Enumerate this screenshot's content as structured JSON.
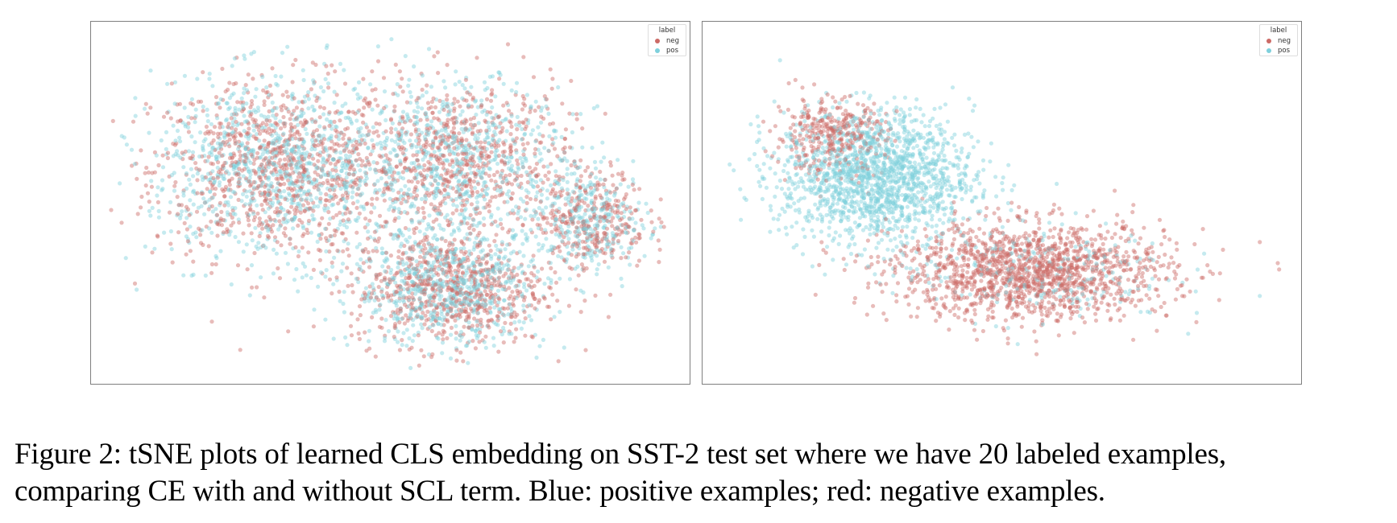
{
  "figure": {
    "caption_line_1": "Figure 2: tSNE plots of learned CLS embedding on SST-2 test set where we have 20 labeled examples,",
    "caption_line_2": "comparing CE with and without SCL term. Blue: positive examples; red: negative examples."
  },
  "colors": {
    "neg": "#cc6a66",
    "pos": "#7fd0dc"
  },
  "chart_data": [
    {
      "type": "scatter",
      "title": "",
      "xlabel": "",
      "ylabel": "",
      "legend": {
        "title": "label",
        "placement": "top-right",
        "entries": [
          "neg",
          "pos"
        ]
      },
      "xlim": [
        0,
        100
      ],
      "ylim": [
        0,
        100
      ],
      "tick_labels_shown": false,
      "grid": false,
      "series": [
        {
          "name": "neg",
          "note_density": "mixed",
          "clusters": [
            [
              30,
              60,
              18,
              22,
              900
            ],
            [
              62,
              62,
              16,
              20,
              700
            ],
            [
              60,
              25,
              14,
              14,
              700
            ],
            [
              85,
              45,
              8,
              12,
              300
            ]
          ]
        },
        {
          "name": "pos",
          "clusters": [
            [
              30,
              60,
              18,
              22,
              950
            ],
            [
              62,
              62,
              16,
              20,
              700
            ],
            [
              60,
              25,
              14,
              14,
              700
            ],
            [
              85,
              45,
              8,
              12,
              300
            ]
          ]
        }
      ]
    },
    {
      "type": "scatter",
      "title": "",
      "xlabel": "",
      "ylabel": "",
      "legend": {
        "title": "label",
        "placement": "top-right",
        "entries": [
          "neg",
          "pos"
        ]
      },
      "xlim": [
        0,
        100
      ],
      "ylim": [
        0,
        100
      ],
      "tick_labels_shown": false,
      "grid": false,
      "series": [
        {
          "name": "neg",
          "clusters": [
            [
              20,
              70,
              8,
              9,
              350
            ],
            [
              55,
              30,
              20,
              12,
              1500
            ]
          ]
        },
        {
          "name": "pos",
          "clusters": [
            [
              28,
              58,
              14,
              16,
              1600
            ],
            [
              55,
              30,
              20,
              12,
              250
            ]
          ]
        }
      ]
    }
  ]
}
